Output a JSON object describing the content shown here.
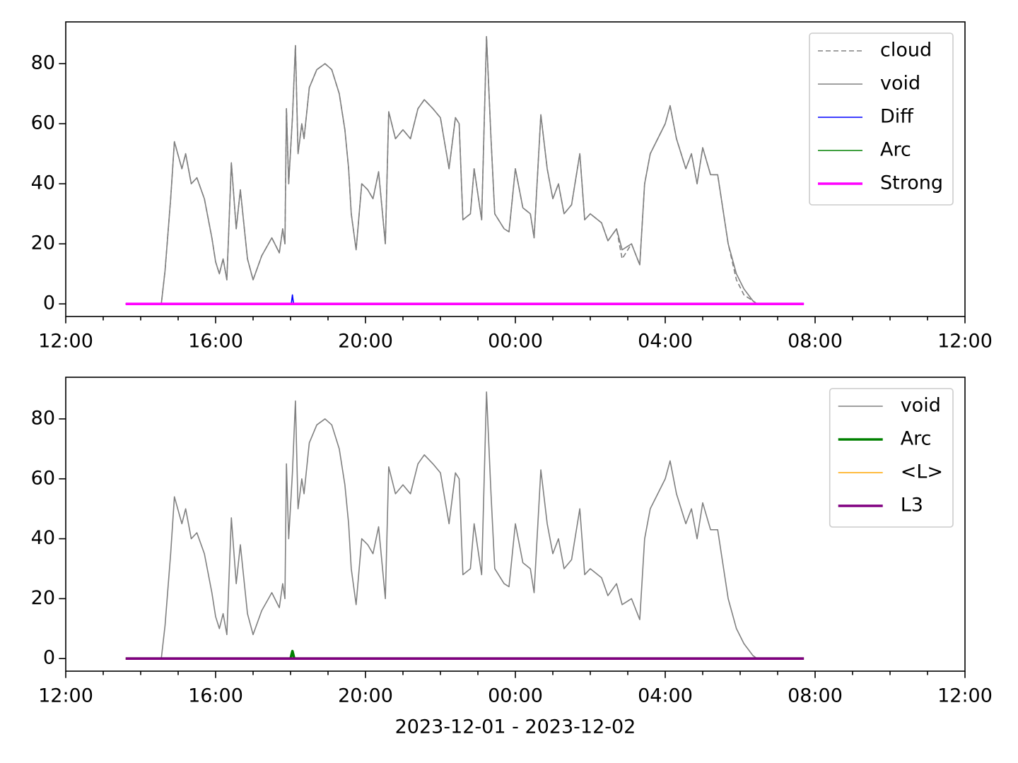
{
  "chart_data": [
    {
      "type": "line",
      "xlim": [
        12,
        36
      ],
      "xticks": [
        {
          "value": 12,
          "label": "12:00"
        },
        {
          "value": 16,
          "label": "16:00"
        },
        {
          "value": 20,
          "label": "20:00"
        },
        {
          "value": 24,
          "label": "00:00"
        },
        {
          "value": 28,
          "label": "04:00"
        },
        {
          "value": 32,
          "label": "08:00"
        },
        {
          "value": 36,
          "label": "12:00"
        }
      ],
      "xminorticks": [
        13,
        14,
        15,
        17,
        18,
        19,
        21,
        22,
        23,
        25,
        26,
        27,
        29,
        30,
        31,
        33,
        34,
        35
      ],
      "ylim": [
        -4.2,
        93.9
      ],
      "yticks": [
        0,
        20,
        40,
        60,
        80
      ],
      "legend": "upper right",
      "series": [
        {
          "name": "cloud",
          "color": "#808080",
          "linestyle": "dashed",
          "linewidth": 1,
          "x": [
            13.6,
            14.55,
            14.65,
            14.8,
            14.9,
            15.1,
            15.2,
            15.35,
            15.5,
            15.7,
            15.9,
            16.0,
            16.1,
            16.2,
            16.3,
            16.42,
            16.55,
            16.66,
            16.85,
            17.0,
            17.23,
            17.5,
            17.7,
            17.79,
            17.85,
            17.89,
            17.95,
            18.05,
            18.13,
            18.2,
            18.3,
            18.36,
            18.5,
            18.7,
            18.92,
            19.1,
            19.3,
            19.45,
            19.55,
            19.62,
            19.75,
            19.9,
            20.06,
            20.2,
            20.35,
            20.53,
            20.62,
            20.8,
            21.0,
            21.2,
            21.4,
            21.57,
            21.8,
            22.0,
            22.23,
            22.4,
            22.5,
            22.6,
            22.8,
            22.9,
            23.1,
            23.23,
            23.35,
            23.45,
            23.7,
            23.83,
            24.0,
            24.2,
            24.4,
            24.5,
            24.68,
            24.85,
            25.0,
            25.15,
            25.3,
            25.5,
            25.72,
            25.85,
            26.0,
            26.3,
            26.47,
            26.7,
            26.85,
            27.1,
            27.32,
            27.45,
            27.6,
            27.8,
            28.0,
            28.13,
            28.3,
            28.55,
            28.7,
            28.85,
            29.0,
            29.21,
            29.4,
            29.68,
            29.9,
            30.1,
            30.34,
            30.45
          ],
          "values": [
            0,
            0,
            11,
            35,
            54,
            45,
            50,
            40,
            42,
            35,
            22,
            14,
            10,
            15,
            8,
            47,
            25,
            38,
            15,
            8,
            16,
            22,
            17,
            25,
            20,
            65,
            40,
            62,
            86,
            50,
            60,
            55,
            72,
            78,
            80,
            78,
            70,
            58,
            45,
            30,
            18,
            40,
            38,
            35,
            44,
            20,
            64,
            55,
            58,
            55,
            65,
            68,
            65,
            62,
            45,
            62,
            60,
            28,
            30,
            45,
            28,
            89,
            55,
            30,
            25,
            24,
            45,
            32,
            30,
            22,
            63,
            45,
            35,
            40,
            30,
            33,
            50,
            28,
            30,
            27,
            21,
            25,
            15,
            20,
            13,
            40,
            50,
            55,
            60,
            66,
            55,
            45,
            50,
            40,
            52,
            43,
            43,
            20,
            8,
            3,
            1,
            0
          ]
        },
        {
          "name": "void",
          "color": "#808080",
          "linestyle": "solid",
          "linewidth": 1,
          "x": [
            13.6,
            14.55,
            14.65,
            14.8,
            14.9,
            15.1,
            15.2,
            15.35,
            15.5,
            15.7,
            15.9,
            16.0,
            16.1,
            16.2,
            16.3,
            16.42,
            16.55,
            16.66,
            16.85,
            17.0,
            17.23,
            17.5,
            17.7,
            17.79,
            17.85,
            17.89,
            17.95,
            18.05,
            18.13,
            18.2,
            18.3,
            18.36,
            18.5,
            18.7,
            18.92,
            19.1,
            19.3,
            19.45,
            19.55,
            19.62,
            19.75,
            19.9,
            20.06,
            20.2,
            20.35,
            20.53,
            20.62,
            20.8,
            21.0,
            21.2,
            21.4,
            21.57,
            21.8,
            22.0,
            22.23,
            22.4,
            22.5,
            22.6,
            22.8,
            22.9,
            23.1,
            23.23,
            23.35,
            23.45,
            23.7,
            23.83,
            24.0,
            24.2,
            24.4,
            24.5,
            24.68,
            24.85,
            25.0,
            25.15,
            25.3,
            25.5,
            25.72,
            25.85,
            26.0,
            26.3,
            26.47,
            26.7,
            26.85,
            27.1,
            27.32,
            27.45,
            27.6,
            27.8,
            28.0,
            28.13,
            28.3,
            28.55,
            28.7,
            28.85,
            29.0,
            29.21,
            29.4,
            29.68,
            29.9,
            30.1,
            30.34,
            30.45
          ],
          "values": [
            0,
            0,
            11,
            35,
            54,
            45,
            50,
            40,
            42,
            35,
            22,
            14,
            10,
            15,
            8,
            47,
            25,
            38,
            15,
            8,
            16,
            22,
            17,
            25,
            20,
            65,
            40,
            62,
            86,
            50,
            60,
            55,
            72,
            78,
            80,
            78,
            70,
            58,
            45,
            30,
            18,
            40,
            38,
            35,
            44,
            20,
            64,
            55,
            58,
            55,
            65,
            68,
            65,
            62,
            45,
            62,
            60,
            28,
            30,
            45,
            28,
            89,
            55,
            30,
            25,
            24,
            45,
            32,
            30,
            22,
            63,
            45,
            35,
            40,
            30,
            33,
            50,
            28,
            30,
            27,
            21,
            25,
            18,
            20,
            13,
            40,
            50,
            55,
            60,
            66,
            55,
            45,
            50,
            40,
            52,
            43,
            43,
            20,
            10,
            5,
            1,
            0
          ]
        },
        {
          "name": "Diff",
          "color": "#0000ff",
          "linestyle": "solid",
          "linewidth": 1,
          "x": [
            13.6,
            18.02,
            18.05,
            18.08,
            31.7
          ],
          "values": [
            0,
            0,
            3,
            0,
            0
          ]
        },
        {
          "name": "Arc",
          "color": "#008000",
          "linestyle": "solid",
          "linewidth": 1,
          "x": [
            13.6,
            31.7
          ],
          "values": [
            0,
            0
          ]
        },
        {
          "name": "Strong",
          "color": "#ff00ff",
          "linestyle": "solid",
          "linewidth": 2,
          "x": [
            13.6,
            31.7
          ],
          "values": [
            0,
            0
          ]
        }
      ]
    },
    {
      "type": "line",
      "xlabel": "2023-12-01 - 2023-12-02",
      "xlim": [
        12,
        36
      ],
      "xticks": [
        {
          "value": 12,
          "label": "12:00"
        },
        {
          "value": 16,
          "label": "16:00"
        },
        {
          "value": 20,
          "label": "20:00"
        },
        {
          "value": 24,
          "label": "00:00"
        },
        {
          "value": 28,
          "label": "04:00"
        },
        {
          "value": 32,
          "label": "08:00"
        },
        {
          "value": 36,
          "label": "12:00"
        }
      ],
      "xminorticks": [
        13,
        14,
        15,
        17,
        18,
        19,
        21,
        22,
        23,
        25,
        26,
        27,
        29,
        30,
        31,
        33,
        34,
        35
      ],
      "ylim": [
        -4.2,
        93.9
      ],
      "yticks": [
        0,
        20,
        40,
        60,
        80
      ],
      "legend": "upper right",
      "series": [
        {
          "name": "void",
          "color": "#808080",
          "linestyle": "solid",
          "linewidth": 1,
          "x": [
            13.6,
            14.55,
            14.65,
            14.8,
            14.9,
            15.1,
            15.2,
            15.35,
            15.5,
            15.7,
            15.9,
            16.0,
            16.1,
            16.2,
            16.3,
            16.42,
            16.55,
            16.66,
            16.85,
            17.0,
            17.23,
            17.5,
            17.7,
            17.79,
            17.85,
            17.89,
            17.95,
            18.05,
            18.13,
            18.2,
            18.3,
            18.36,
            18.5,
            18.7,
            18.92,
            19.1,
            19.3,
            19.45,
            19.55,
            19.62,
            19.75,
            19.9,
            20.06,
            20.2,
            20.35,
            20.53,
            20.62,
            20.8,
            21.0,
            21.2,
            21.4,
            21.57,
            21.8,
            22.0,
            22.23,
            22.4,
            22.5,
            22.6,
            22.8,
            22.9,
            23.1,
            23.23,
            23.35,
            23.45,
            23.7,
            23.83,
            24.0,
            24.2,
            24.4,
            24.5,
            24.68,
            24.85,
            25.0,
            25.15,
            25.3,
            25.5,
            25.72,
            25.85,
            26.0,
            26.3,
            26.47,
            26.7,
            26.85,
            27.1,
            27.32,
            27.45,
            27.6,
            27.8,
            28.0,
            28.13,
            28.3,
            28.55,
            28.7,
            28.85,
            29.0,
            29.21,
            29.4,
            29.68,
            29.9,
            30.1,
            30.34,
            30.45
          ],
          "values": [
            0,
            0,
            11,
            35,
            54,
            45,
            50,
            40,
            42,
            35,
            22,
            14,
            10,
            15,
            8,
            47,
            25,
            38,
            15,
            8,
            16,
            22,
            17,
            25,
            20,
            65,
            40,
            62,
            86,
            50,
            60,
            55,
            72,
            78,
            80,
            78,
            70,
            58,
            45,
            30,
            18,
            40,
            38,
            35,
            44,
            20,
            64,
            55,
            58,
            55,
            65,
            68,
            65,
            62,
            45,
            62,
            60,
            28,
            30,
            45,
            28,
            89,
            55,
            30,
            25,
            24,
            45,
            32,
            30,
            22,
            63,
            45,
            35,
            40,
            30,
            33,
            50,
            28,
            30,
            27,
            21,
            25,
            18,
            20,
            13,
            40,
            50,
            55,
            60,
            66,
            55,
            45,
            50,
            40,
            52,
            43,
            43,
            20,
            10,
            5,
            1,
            0
          ]
        },
        {
          "name": "Arc",
          "color": "#008000",
          "linestyle": "solid",
          "linewidth": 2,
          "x": [
            13.6,
            18.0,
            18.05,
            18.1,
            31.7
          ],
          "values": [
            0,
            0,
            2.5,
            0,
            0
          ]
        },
        {
          "name": "<L>",
          "color": "#ffa500",
          "linestyle": "solid",
          "linewidth": 1,
          "x": [
            13.6,
            31.7
          ],
          "values": [
            0,
            0
          ]
        },
        {
          "name": "L3",
          "color": "#800080",
          "linestyle": "solid",
          "linewidth": 2,
          "x": [
            13.6,
            31.7
          ],
          "values": [
            0,
            0
          ]
        }
      ]
    }
  ]
}
